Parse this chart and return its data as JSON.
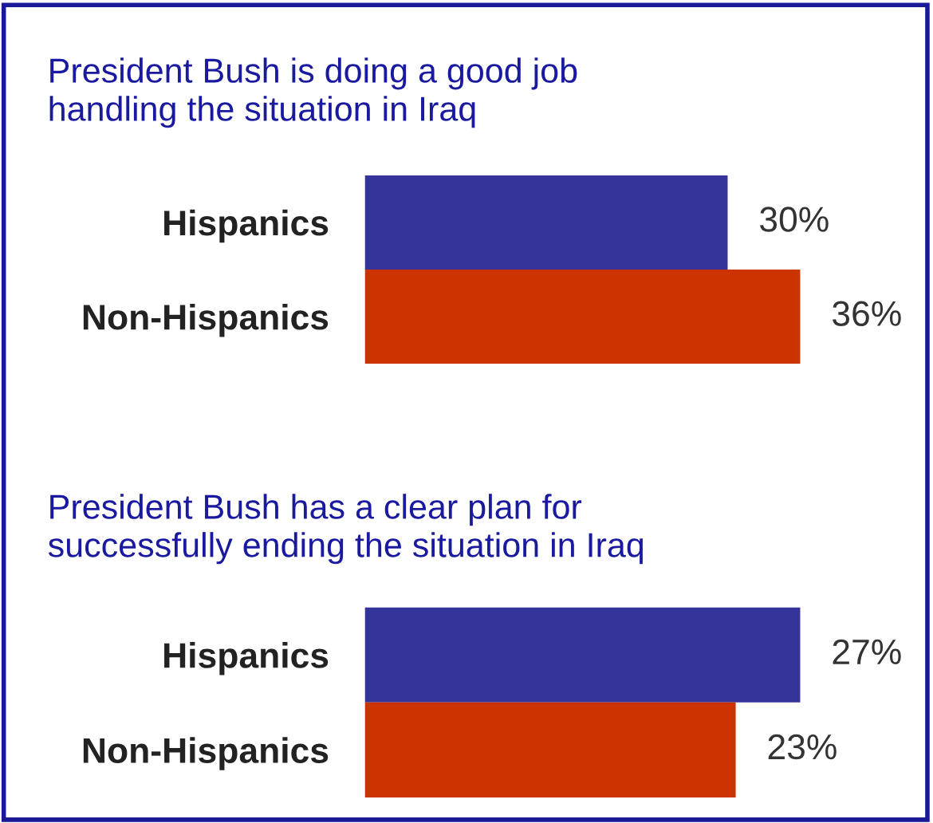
{
  "chart_data": [
    {
      "type": "bar",
      "orientation": "horizontal",
      "title": "President Bush is doing a good job\nhandling the situation in Iraq",
      "categories": [
        "Hispanics",
        "Non-Hispanics"
      ],
      "values": [
        30,
        36
      ],
      "colors": [
        "#35349a",
        "#cc3300"
      ],
      "value_labels": [
        "30%",
        "36%"
      ]
    },
    {
      "type": "bar",
      "orientation": "horizontal",
      "title": "President Bush has a clear plan for\nsuccessfully ending the situation in Iraq",
      "categories": [
        "Hispanics",
        "Non-Hispanics"
      ],
      "values": [
        27,
        23
      ],
      "colors": [
        "#35349a",
        "#cc3300"
      ],
      "value_labels": [
        "27%",
        "23%"
      ]
    }
  ]
}
